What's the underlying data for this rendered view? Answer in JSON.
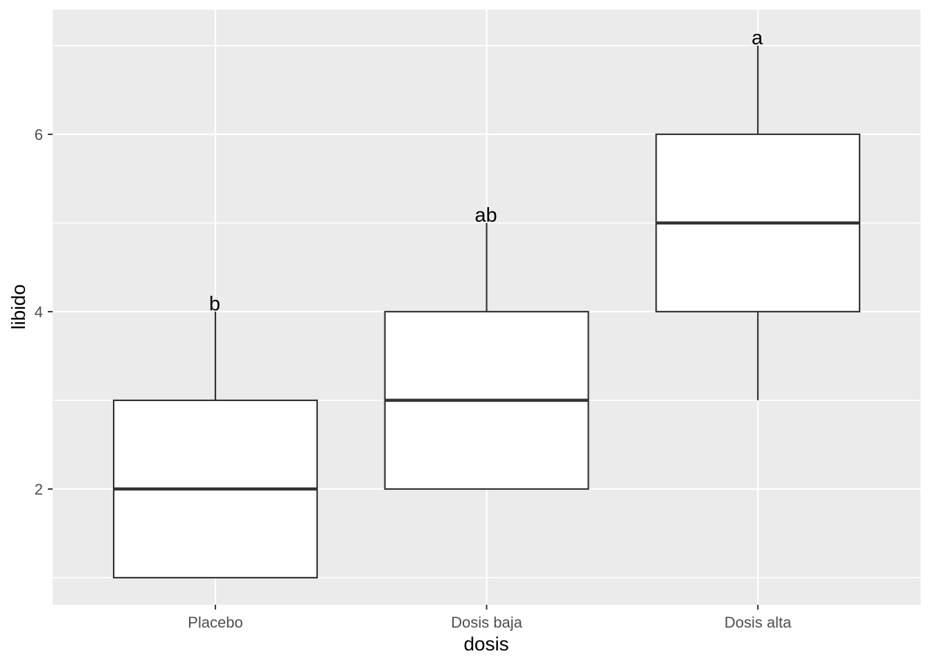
{
  "chart_data": {
    "type": "boxplot",
    "title": "",
    "xlabel": "dosis",
    "ylabel": "libido",
    "categories": [
      "Placebo",
      "Dosis baja",
      "Dosis alta"
    ],
    "series": [
      {
        "category": "Placebo",
        "whisker_low": 1,
        "q1": 1,
        "median": 2,
        "q3": 3,
        "whisker_high": 4,
        "sig_label": "b"
      },
      {
        "category": "Dosis baja",
        "whisker_low": 2,
        "q1": 2,
        "median": 3,
        "q3": 4,
        "whisker_high": 5,
        "sig_label": "ab"
      },
      {
        "category": "Dosis alta",
        "whisker_low": 3,
        "q1": 4,
        "median": 5,
        "q3": 6,
        "whisker_high": 7,
        "sig_label": "a"
      }
    ],
    "y_axis": {
      "tick_labels": [
        "2",
        "4",
        "6"
      ],
      "tick_values": [
        2,
        4,
        6
      ],
      "minor_values": [
        1,
        3,
        5,
        7
      ],
      "range": [
        0.695,
        7.405
      ]
    },
    "x_axis": {
      "positions": [
        1,
        2,
        3
      ],
      "range": [
        0.4,
        3.6
      ],
      "box_width": 0.75
    },
    "legend": "none",
    "grid": "horizontal major+minor, vertical major only",
    "colors": {
      "panel_background": "#EBEBEB",
      "gridline": "#FFFFFF",
      "box_fill": "#FFFFFF",
      "box_stroke": "#333333",
      "tick_mark": "#333333",
      "axis_text": "#4D4D4D",
      "axis_title": "#000000",
      "sig_letter": "#000000"
    }
  }
}
